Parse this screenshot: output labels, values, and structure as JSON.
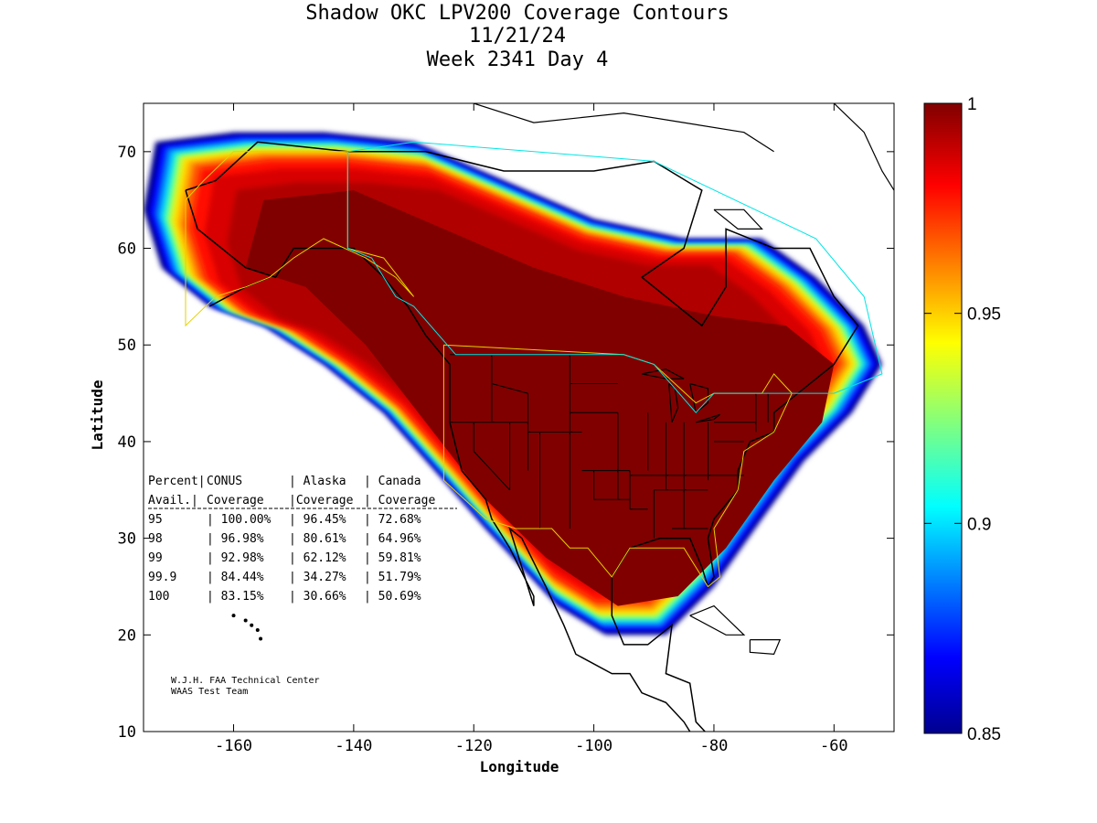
{
  "title": {
    "line1": "Shadow OKC LPV200 Coverage Contours",
    "line2": "11/21/24",
    "line3": "Week 2341 Day 4"
  },
  "axes": {
    "xlabel": "Longitude",
    "ylabel": "Latitude",
    "xlim": [
      -175,
      -50
    ],
    "ylim": [
      10,
      75
    ],
    "xticks": [
      -160,
      -140,
      -120,
      -100,
      -80,
      -60
    ],
    "yticks": [
      10,
      20,
      30,
      40,
      50,
      60,
      70
    ],
    "xtick_labels": [
      "-160",
      "-140",
      "-120",
      "-100",
      "-80",
      "-60"
    ],
    "ytick_labels": [
      "10",
      "20",
      "30",
      "40",
      "50",
      "60",
      "70"
    ]
  },
  "colorbar": {
    "min": 0.85,
    "max": 1,
    "tick_labels": [
      "1",
      "0.95",
      "0.9",
      "0.85"
    ],
    "tick_values": [
      1,
      0.95,
      0.9,
      0.85
    ],
    "colormap": "jet"
  },
  "table": {
    "header1": [
      "Percent|",
      "CONUS",
      "| Alaska",
      "| Canada"
    ],
    "header2": [
      "Avail.|",
      "Coverage",
      "|Coverage",
      "| Coverage"
    ],
    "rows": [
      [
        "95",
        "| 100.00%",
        "| 96.45%",
        "| 72.68%"
      ],
      [
        "98",
        "| 96.98%",
        "| 80.61%",
        "| 64.96%"
      ],
      [
        "99",
        "| 92.98%",
        "| 62.12%",
        "| 59.81%"
      ],
      [
        "99.9",
        "| 84.44%",
        "| 34.27%",
        "| 51.79%"
      ],
      [
        "100",
        "| 83.15%",
        "| 30.66%",
        "| 50.69%"
      ]
    ]
  },
  "credit": {
    "line1": "W.J.H. FAA Technical Center",
    "line2": "WAAS Test Team"
  },
  "chart_data": {
    "type": "heatmap",
    "title": "Shadow OKC LPV200 Coverage Contours",
    "subtitle": "11/21/24 Week 2341 Day 4",
    "xlabel": "Longitude",
    "ylabel": "Latitude",
    "xlim": [
      -175,
      -50
    ],
    "ylim": [
      10,
      75
    ],
    "value_range": [
      0.85,
      1
    ],
    "coverage_region_lonlat": [
      [
        -173,
        71
      ],
      [
        -160,
        72
      ],
      [
        -145,
        72
      ],
      [
        -130,
        71
      ],
      [
        -115,
        67
      ],
      [
        -100,
        63
      ],
      [
        -85,
        61
      ],
      [
        -72,
        61
      ],
      [
        -63,
        57
      ],
      [
        -55,
        52
      ],
      [
        -52,
        48
      ],
      [
        -57,
        43
      ],
      [
        -65,
        38
      ],
      [
        -72,
        32
      ],
      [
        -80,
        25
      ],
      [
        -88,
        20
      ],
      [
        -98,
        20
      ],
      [
        -106,
        23
      ],
      [
        -112,
        27
      ],
      [
        -118,
        31
      ],
      [
        -125,
        36
      ],
      [
        -135,
        43
      ],
      [
        -145,
        48
      ],
      [
        -155,
        52
      ],
      [
        -164,
        54
      ],
      [
        -172,
        58
      ],
      [
        -175,
        64
      ]
    ],
    "core_region_lonlat": [
      [
        -155,
        65
      ],
      [
        -140,
        66
      ],
      [
        -125,
        62
      ],
      [
        -110,
        58
      ],
      [
        -95,
        55
      ],
      [
        -80,
        53
      ],
      [
        -68,
        52
      ],
      [
        -60,
        48
      ],
      [
        -62,
        42
      ],
      [
        -70,
        36
      ],
      [
        -78,
        29
      ],
      [
        -86,
        24
      ],
      [
        -96,
        23
      ],
      [
        -108,
        28
      ],
      [
        -118,
        34
      ],
      [
        -128,
        42
      ],
      [
        -138,
        50
      ],
      [
        -148,
        56
      ],
      [
        -158,
        58
      ]
    ],
    "notes": "Availability contours of LPV200 coverage; outer ring 0.85 (dark blue) to interior 1.0 (dark red)."
  }
}
